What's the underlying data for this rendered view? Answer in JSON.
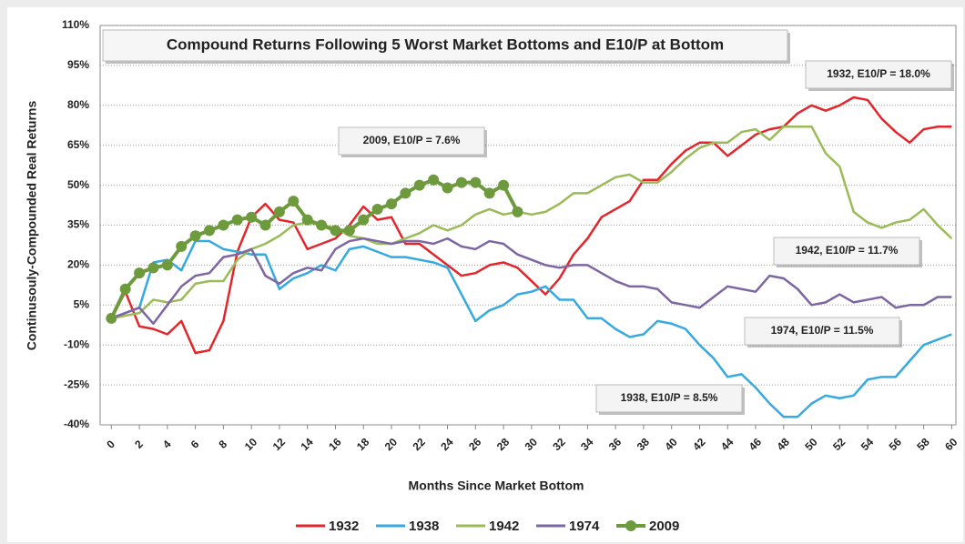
{
  "chart_data": {
    "type": "line",
    "title": "Compound Returns Following 5 Worst Market Bottoms and E10/P at Bottom",
    "x_label": "Months Since Market Bottom",
    "y_label": "Continusouly-Compounded Real Returns",
    "x": [
      0,
      1,
      2,
      3,
      4,
      5,
      6,
      7,
      8,
      9,
      10,
      11,
      12,
      13,
      14,
      15,
      16,
      17,
      18,
      19,
      20,
      21,
      22,
      23,
      24,
      25,
      26,
      27,
      28,
      29,
      30,
      31,
      32,
      33,
      34,
      35,
      36,
      37,
      38,
      39,
      40,
      41,
      42,
      43,
      44,
      45,
      46,
      47,
      48,
      49,
      50,
      51,
      52,
      53,
      54,
      55,
      56,
      57,
      58,
      59,
      60
    ],
    "xlim": [
      -0.8,
      60.3
    ],
    "xticks": [
      0,
      2,
      4,
      6,
      8,
      10,
      12,
      14,
      16,
      18,
      20,
      22,
      24,
      26,
      28,
      30,
      32,
      34,
      36,
      38,
      40,
      42,
      44,
      46,
      48,
      50,
      52,
      54,
      56,
      58,
      60
    ],
    "ylim": [
      -40,
      110
    ],
    "yticks": [
      {
        "value": -40,
        "label": "-40%"
      },
      {
        "value": -25,
        "label": "-25%"
      },
      {
        "value": -10,
        "label": "-10%"
      },
      {
        "value": 5,
        "label": "5%"
      },
      {
        "value": 20,
        "label": "20%"
      },
      {
        "value": 35,
        "label": "35%"
      },
      {
        "value": 50,
        "label": "50%"
      },
      {
        "value": 65,
        "label": "65%"
      },
      {
        "value": 80,
        "label": "80%"
      },
      {
        "value": 95,
        "label": "95%"
      },
      {
        "value": 110,
        "label": "110%"
      }
    ],
    "grid": true,
    "legend": "bottom",
    "series": [
      {
        "name": "1932",
        "color": "#e3262b",
        "values": [
          0,
          10,
          -3,
          -4,
          -6,
          -1,
          -13,
          -12,
          -1,
          25,
          38,
          43,
          37,
          36,
          26,
          28,
          30,
          35,
          42,
          37,
          38,
          28,
          28,
          24,
          20,
          16,
          17,
          20,
          21,
          19,
          14,
          9,
          15,
          24,
          30,
          38,
          41,
          44,
          52,
          52,
          58,
          63,
          66,
          66,
          61,
          65,
          69,
          71,
          72,
          77,
          80,
          78,
          80,
          83,
          82,
          75,
          70,
          66,
          71,
          72,
          72
        ]
      },
      {
        "name": "1938",
        "color": "#35a9e0",
        "values": [
          0,
          2,
          4,
          21,
          22,
          18,
          29,
          29,
          26,
          25,
          24,
          24,
          11,
          15,
          17,
          20,
          18,
          26,
          27,
          25,
          23,
          23,
          22,
          21,
          19,
          9,
          -1,
          3,
          5,
          9,
          10,
          12,
          7,
          7,
          0,
          0,
          -4,
          -7,
          -6,
          -1,
          -2,
          -4,
          -10,
          -15,
          -22,
          -21,
          -26,
          -32,
          -37,
          -37,
          -32,
          -29,
          -30,
          -29,
          -23,
          -22,
          -22,
          -16,
          -10,
          -8,
          -6
        ]
      },
      {
        "name": "1942",
        "color": "#9bbb59",
        "values": [
          0,
          1,
          2,
          7,
          6,
          7,
          13,
          14,
          14,
          22,
          26,
          28,
          31,
          35,
          36,
          35,
          34,
          31,
          30,
          28,
          28,
          30,
          32,
          35,
          33,
          35,
          39,
          41,
          39,
          40,
          39,
          40,
          43,
          47,
          47,
          50,
          53,
          54,
          51,
          51,
          55,
          60,
          64,
          66,
          66,
          70,
          71,
          67,
          72,
          72,
          72,
          62,
          57,
          40,
          36,
          34,
          36,
          37,
          41,
          35,
          30
        ]
      },
      {
        "name": "1974",
        "color": "#7e66a3",
        "values": [
          0,
          2,
          4,
          -2,
          5,
          12,
          16,
          17,
          23,
          24,
          26,
          16,
          13,
          17,
          19,
          18,
          26,
          29,
          30,
          29,
          28,
          29,
          29,
          28,
          30,
          27,
          26,
          29,
          28,
          24,
          22,
          20,
          19,
          20,
          20,
          17,
          14,
          12,
          12,
          11,
          6,
          5,
          4,
          8,
          12,
          11,
          10,
          16,
          15,
          11,
          5,
          6,
          9,
          6,
          7,
          8,
          4,
          5,
          5,
          8,
          8
        ]
      },
      {
        "name": "2009",
        "color": "#6e9a3e",
        "values": [
          0,
          11,
          17,
          19,
          20,
          27,
          31,
          33,
          35,
          37,
          38,
          35,
          40,
          44,
          37,
          35,
          33,
          33,
          37,
          41,
          43,
          47,
          50,
          52,
          49,
          51,
          51,
          47,
          50,
          40,
          null,
          null,
          null,
          null,
          null,
          null,
          null,
          null,
          null,
          null,
          null,
          null,
          null,
          null,
          null,
          null,
          null,
          null,
          null,
          null,
          null,
          null,
          null,
          null,
          null,
          null,
          null,
          null,
          null,
          null,
          null
        ]
      }
    ],
    "annotations": [
      "1932, E10/P = 18.0%",
      "2009, E10/P = 7.6%",
      "1942, E10/P = 11.7%",
      "1974, E10/P = 11.5%",
      "1938, E10/P = 8.5%"
    ]
  }
}
